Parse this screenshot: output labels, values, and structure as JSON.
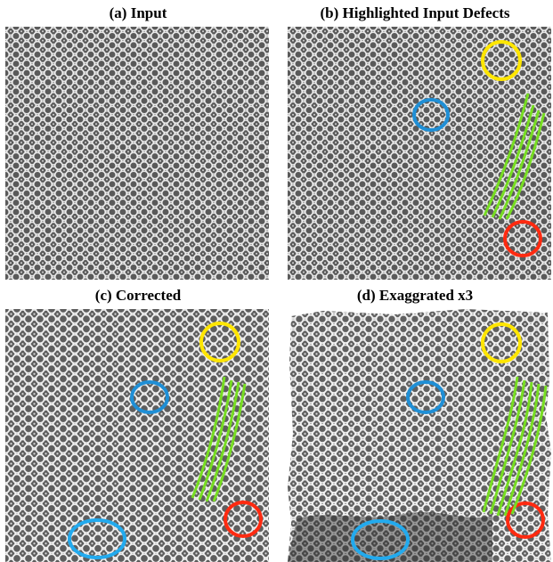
{
  "figure": {
    "panels": [
      {
        "id": "a",
        "caption": "(a) Input"
      },
      {
        "id": "b",
        "caption": "(b) Highlighted Input Defects"
      },
      {
        "id": "c",
        "caption": "(c) Corrected"
      },
      {
        "id": "d",
        "caption": "(d) Exaggrated x3"
      }
    ],
    "annotation_colors": {
      "yellow": "#ffe600",
      "blue": "#1f8fd6",
      "light_blue": "#22aaee",
      "red": "#ff2a10",
      "green": "#77dd22"
    }
  }
}
